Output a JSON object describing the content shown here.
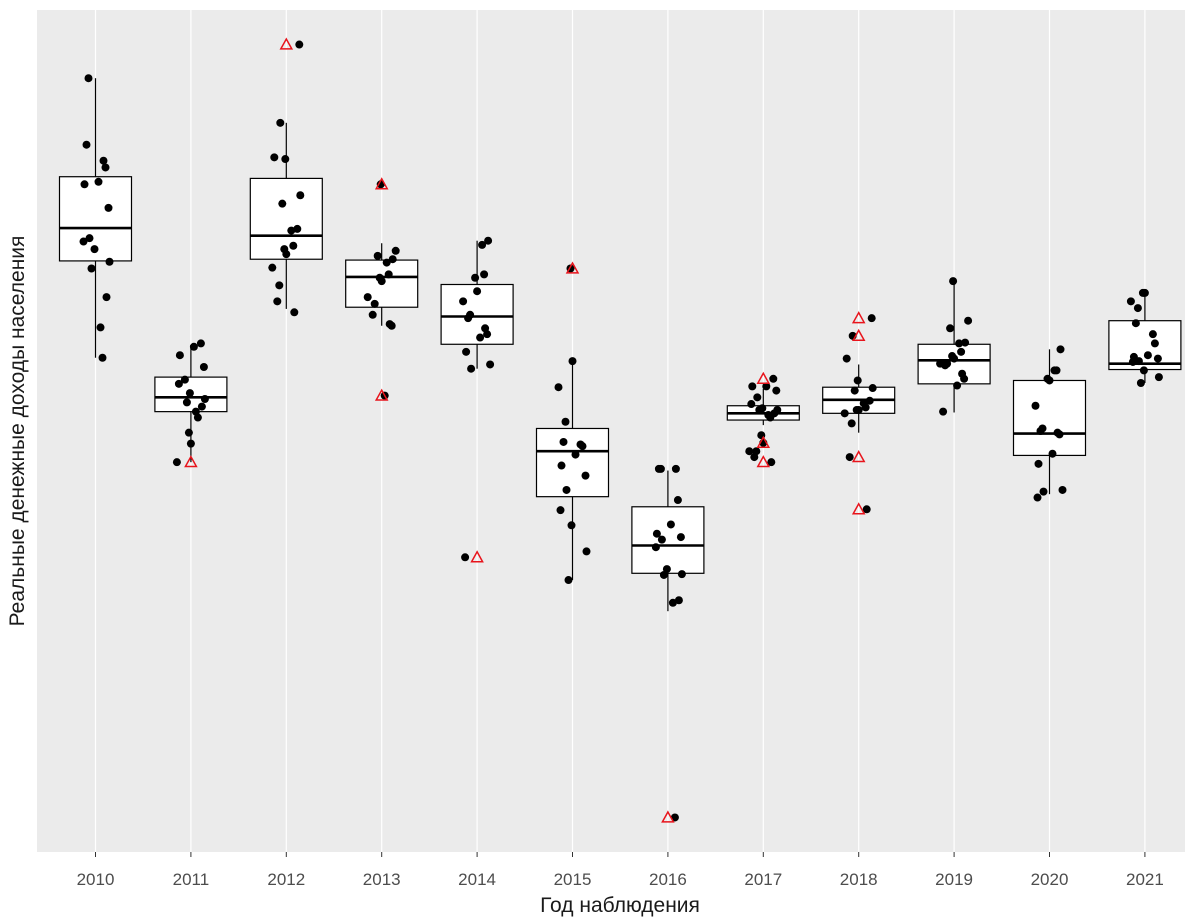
{
  "chart_data": {
    "type": "box",
    "title": "",
    "xlabel": "Год наблюдения",
    "ylabel": "Реальные денежные доходы населения",
    "categories": [
      "2010",
      "2011",
      "2012",
      "2013",
      "2014",
      "2015",
      "2016",
      "2017",
      "2018",
      "2019",
      "2020",
      "2021"
    ],
    "y_scale": "no tick labels shown; values expressed in an arbitrary 0–100 scale (0 = bottom of panel, 100 = top of panel)",
    "ylim": [
      0,
      100
    ],
    "grid": true,
    "legend": "none",
    "colors": {
      "panel": "#ebebeb",
      "grid": "#ffffff",
      "box_fill": "#ffffff",
      "box_line": "#000000",
      "point": "#000000",
      "triangle": "#e8141c"
    },
    "boxes": [
      {
        "category": "2010",
        "lower_whisker": 58.7,
        "q1": 70.2,
        "median": 74.1,
        "q3": 80.2,
        "upper_whisker": 91.9
      },
      {
        "category": "2011",
        "lower_whisker": 46.3,
        "q1": 52.3,
        "median": 54.0,
        "q3": 56.4,
        "upper_whisker": 60.2
      },
      {
        "category": "2012",
        "lower_whisker": 64.5,
        "q1": 70.4,
        "median": 73.2,
        "q3": 80.0,
        "upper_whisker": 86.6
      },
      {
        "category": "2013",
        "lower_whisker": 62.5,
        "q1": 64.7,
        "median": 68.3,
        "q3": 70.3,
        "upper_whisker": 72.3
      },
      {
        "category": "2014",
        "lower_whisker": 57.4,
        "q1": 60.3,
        "median": 63.6,
        "q3": 67.4,
        "upper_whisker": 72.6
      },
      {
        "category": "2015",
        "lower_whisker": 32.3,
        "q1": 42.2,
        "median": 47.6,
        "q3": 50.3,
        "upper_whisker": 58.3
      },
      {
        "category": "2016",
        "lower_whisker": 28.6,
        "q1": 33.1,
        "median": 36.4,
        "q3": 41.0,
        "upper_whisker": 45.3
      },
      {
        "category": "2017",
        "lower_whisker": 50.7,
        "q1": 51.3,
        "median": 52.1,
        "q3": 53.0,
        "upper_whisker": 55.0
      },
      {
        "category": "2018",
        "lower_whisker": 49.8,
        "q1": 52.1,
        "median": 53.7,
        "q3": 55.2,
        "upper_whisker": 57.9
      },
      {
        "category": "2019",
        "lower_whisker": 52.2,
        "q1": 55.6,
        "median": 58.4,
        "q3": 60.3,
        "upper_whisker": 67.8
      },
      {
        "category": "2020",
        "lower_whisker": 42.5,
        "q1": 47.1,
        "median": 49.7,
        "q3": 56.0,
        "upper_whisker": 59.7
      },
      {
        "category": "2021",
        "lower_whisker": 55.7,
        "q1": 57.3,
        "median": 58.0,
        "q3": 63.1,
        "upper_whisker": 66.6
      }
    ],
    "points": [
      {
        "category": "2010",
        "values": [
          91.9,
          84.0,
          82.1,
          81.3,
          79.6,
          79.3,
          76.5,
          72.9,
          72.5,
          71.6,
          70.1,
          69.3,
          65.9,
          62.3,
          58.7
        ]
      },
      {
        "category": "2011",
        "values": [
          60.4,
          60.0,
          59.0,
          57.6,
          56.1,
          55.6,
          54.5,
          53.8,
          53.4,
          52.9,
          52.3,
          51.6,
          49.8,
          48.5,
          46.3
        ]
      },
      {
        "category": "2012",
        "values": [
          95.9,
          86.6,
          82.5,
          82.3,
          78.0,
          77.0,
          74.0,
          73.8,
          72.0,
          71.6,
          71.0,
          69.4,
          67.3,
          65.4,
          64.1
        ]
      },
      {
        "category": "2013",
        "values": [
          79.3,
          71.4,
          70.8,
          70.4,
          70.0,
          68.6,
          68.2,
          67.8,
          65.9,
          65.1,
          63.8,
          62.7,
          62.5,
          54.2
        ]
      },
      {
        "category": "2014",
        "values": [
          72.6,
          72.1,
          68.6,
          68.2,
          66.6,
          65.4,
          63.8,
          63.4,
          62.2,
          61.5,
          61.1,
          59.4,
          57.9,
          57.4,
          35.0
        ]
      },
      {
        "category": "2015",
        "values": [
          69.3,
          58.3,
          55.2,
          51.1,
          48.7,
          48.4,
          48.2,
          47.2,
          45.9,
          44.7,
          43.0,
          40.6,
          38.8,
          35.7,
          32.3
        ]
      },
      {
        "category": "2016",
        "values": [
          45.5,
          45.5,
          45.5,
          41.8,
          38.9,
          37.8,
          37.4,
          37.1,
          36.2,
          33.6,
          33.0,
          32.9,
          29.9,
          29.6,
          4.1
        ]
      },
      {
        "category": "2017",
        "values": [
          56.2,
          55.3,
          55.3,
          54.8,
          54.0,
          53.2,
          52.7,
          52.5,
          52.5,
          52.1,
          51.9,
          51.6,
          49.5,
          48.6,
          47.6,
          47.6,
          46.9,
          46.3
        ]
      },
      {
        "category": "2018",
        "values": [
          63.4,
          61.3,
          58.6,
          56.0,
          55.1,
          54.8,
          53.6,
          53.3,
          52.8,
          52.5,
          52.5,
          52.1,
          50.9,
          46.9,
          40.7
        ]
      },
      {
        "category": "2019",
        "values": [
          67.8,
          63.1,
          62.2,
          60.5,
          60.4,
          59.4,
          58.9,
          58.6,
          58.0,
          58.0,
          57.8,
          56.8,
          56.2,
          55.4,
          52.3
        ]
      },
      {
        "category": "2020",
        "values": [
          59.7,
          57.2,
          57.2,
          56.2,
          56.0,
          53.0,
          50.3,
          50.0,
          49.8,
          49.6,
          47.3,
          46.1,
          43.0,
          42.8,
          42.1
        ]
      },
      {
        "category": "2021",
        "values": [
          66.4,
          66.4,
          65.4,
          64.6,
          62.8,
          61.5,
          60.4,
          59.0,
          58.8,
          58.6,
          58.3,
          58.2,
          57.2,
          56.4,
          55.7
        ]
      }
    ],
    "highlighted_points_red_triangle": [
      {
        "category": "2011",
        "value": 46.3
      },
      {
        "category": "2012",
        "value": 95.9
      },
      {
        "category": "2013",
        "value": 79.3
      },
      {
        "category": "2013",
        "value": 54.2
      },
      {
        "category": "2014",
        "value": 35.0
      },
      {
        "category": "2015",
        "value": 69.3
      },
      {
        "category": "2016",
        "value": 4.1
      },
      {
        "category": "2017",
        "value": 56.2
      },
      {
        "category": "2017",
        "value": 48.6
      },
      {
        "category": "2017",
        "value": 46.3
      },
      {
        "category": "2018",
        "value": 63.4
      },
      {
        "category": "2018",
        "value": 61.3
      },
      {
        "category": "2018",
        "value": 46.9
      },
      {
        "category": "2018",
        "value": 40.7
      }
    ]
  }
}
